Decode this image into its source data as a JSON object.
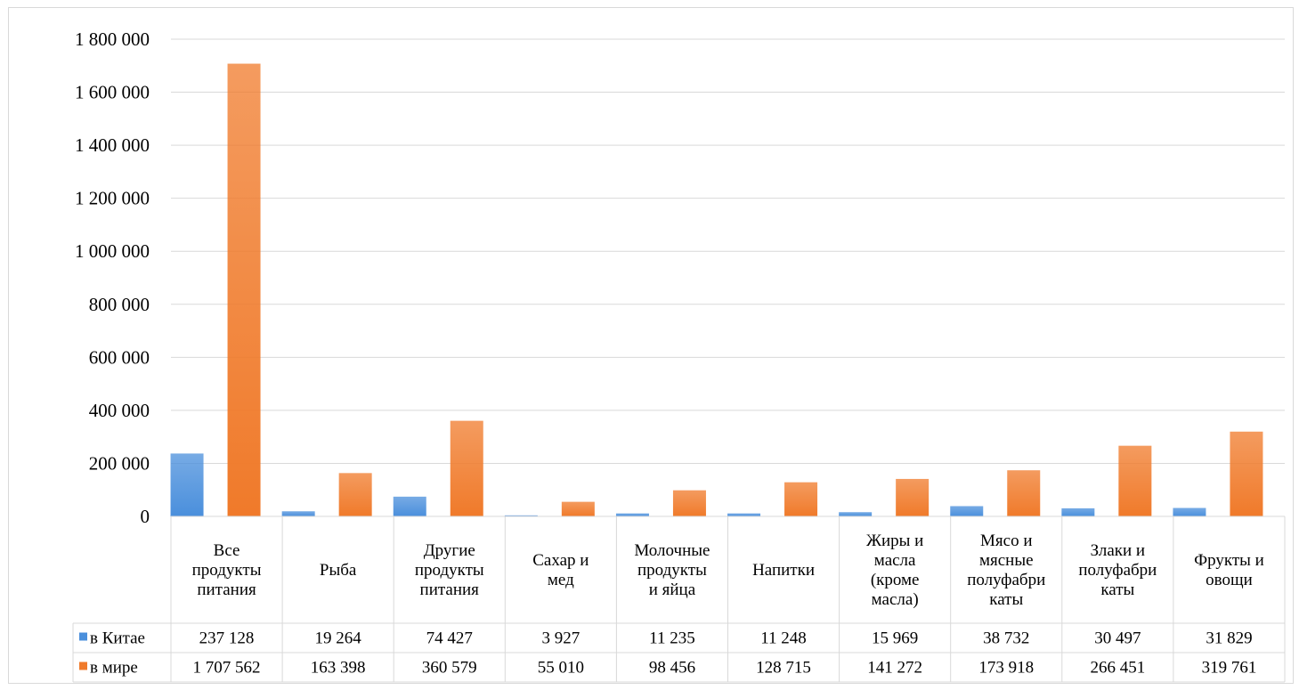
{
  "chart_data": {
    "type": "bar",
    "categories": [
      [
        "Все",
        "продукты",
        "питания"
      ],
      [
        "Рыба"
      ],
      [
        "Другие",
        "продукты",
        "питания"
      ],
      [
        "Сахар и",
        "мед"
      ],
      [
        "Молочные",
        "продукты",
        "и яйца"
      ],
      [
        "Напитки"
      ],
      [
        "Жиры и",
        "масла",
        "(кроме",
        "масла)"
      ],
      [
        "Мясо и",
        "мясные",
        "полуфабри",
        "каты"
      ],
      [
        "Злаки и",
        "полуфабри",
        "каты"
      ],
      [
        "Фрукты и",
        "овощи"
      ]
    ],
    "series": [
      {
        "name": "в Китае",
        "color": "#4a8fdc",
        "values": [
          237128,
          19264,
          74427,
          3927,
          11235,
          11248,
          15969,
          38732,
          30497,
          31829
        ],
        "labels": [
          "237 128",
          "19 264",
          "74 427",
          "3 927",
          "11 235",
          "11 248",
          "15 969",
          "38 732",
          "30 497",
          "31 829"
        ]
      },
      {
        "name": "в мире",
        "color": "#f07a2a",
        "values": [
          1707562,
          163398,
          360579,
          55010,
          98456,
          128715,
          141272,
          173918,
          266451,
          319761
        ],
        "labels": [
          "1 707 562",
          "163 398",
          "360 579",
          "55 010",
          "98 456",
          "128 715",
          "141 272",
          "173 918",
          "266 451",
          "319 761"
        ]
      }
    ],
    "ylim": [
      0,
      1800000
    ],
    "yticks": [
      0,
      200000,
      400000,
      600000,
      800000,
      1000000,
      1200000,
      1400000,
      1600000,
      1800000
    ],
    "ytick_labels": [
      "0",
      "200 000",
      "400 000",
      "600 000",
      "800 000",
      "1 000 000",
      "1 200 000",
      "1 400 000",
      "1 600 000",
      "1 800 000"
    ],
    "grid": true,
    "legend": "data-table",
    "title": "",
    "xlabel": "",
    "ylabel": ""
  }
}
